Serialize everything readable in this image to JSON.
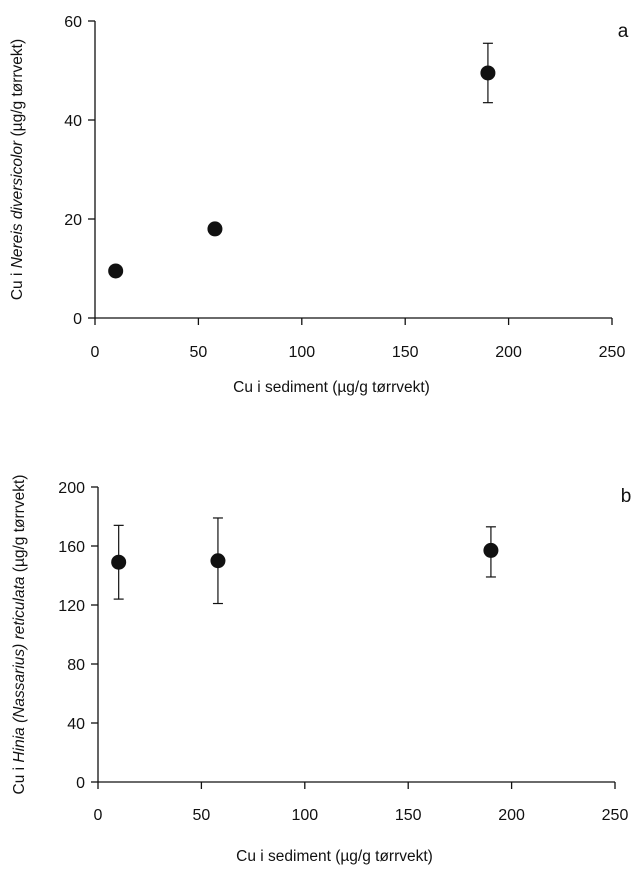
{
  "chart_data": [
    {
      "type": "scatter",
      "panel_label": "a",
      "xlabel": "Cu i sediment (µg/g tørrvekt)",
      "ylabel": {
        "prefix": "Cu i ",
        "italic": "Nereis diversicolor",
        "suffix": " (µg/g tørrvekt)"
      },
      "xlim": [
        0,
        250
      ],
      "ylim": [
        0,
        60
      ],
      "xticks": [
        0,
        50,
        100,
        150,
        200,
        250
      ],
      "yticks": [
        0,
        20,
        40,
        60
      ],
      "grid": false,
      "series": [
        {
          "x": [
            10,
            58,
            190
          ],
          "y": [
            9.5,
            18,
            49.5
          ],
          "err_low": [
            null,
            null,
            43.5
          ],
          "err_high": [
            null,
            null,
            55.5
          ]
        }
      ]
    },
    {
      "type": "scatter",
      "panel_label": "b",
      "xlabel": "Cu i sediment (µg/g tørrvekt)",
      "ylabel": {
        "prefix": "Cu i ",
        "italic": "Hinia (Nassarius) reticulata",
        "suffix": " (µg/g tørrvekt)"
      },
      "xlim": [
        0,
        250
      ],
      "ylim": [
        0,
        200
      ],
      "xticks": [
        0,
        50,
        100,
        150,
        200,
        250
      ],
      "yticks": [
        0,
        40,
        80,
        120,
        160,
        200
      ],
      "grid": false,
      "series": [
        {
          "x": [
            10,
            58,
            190
          ],
          "y": [
            149,
            150,
            157
          ],
          "err_low": [
            124,
            121,
            139
          ],
          "err_high": [
            174,
            179,
            173
          ]
        }
      ]
    }
  ]
}
